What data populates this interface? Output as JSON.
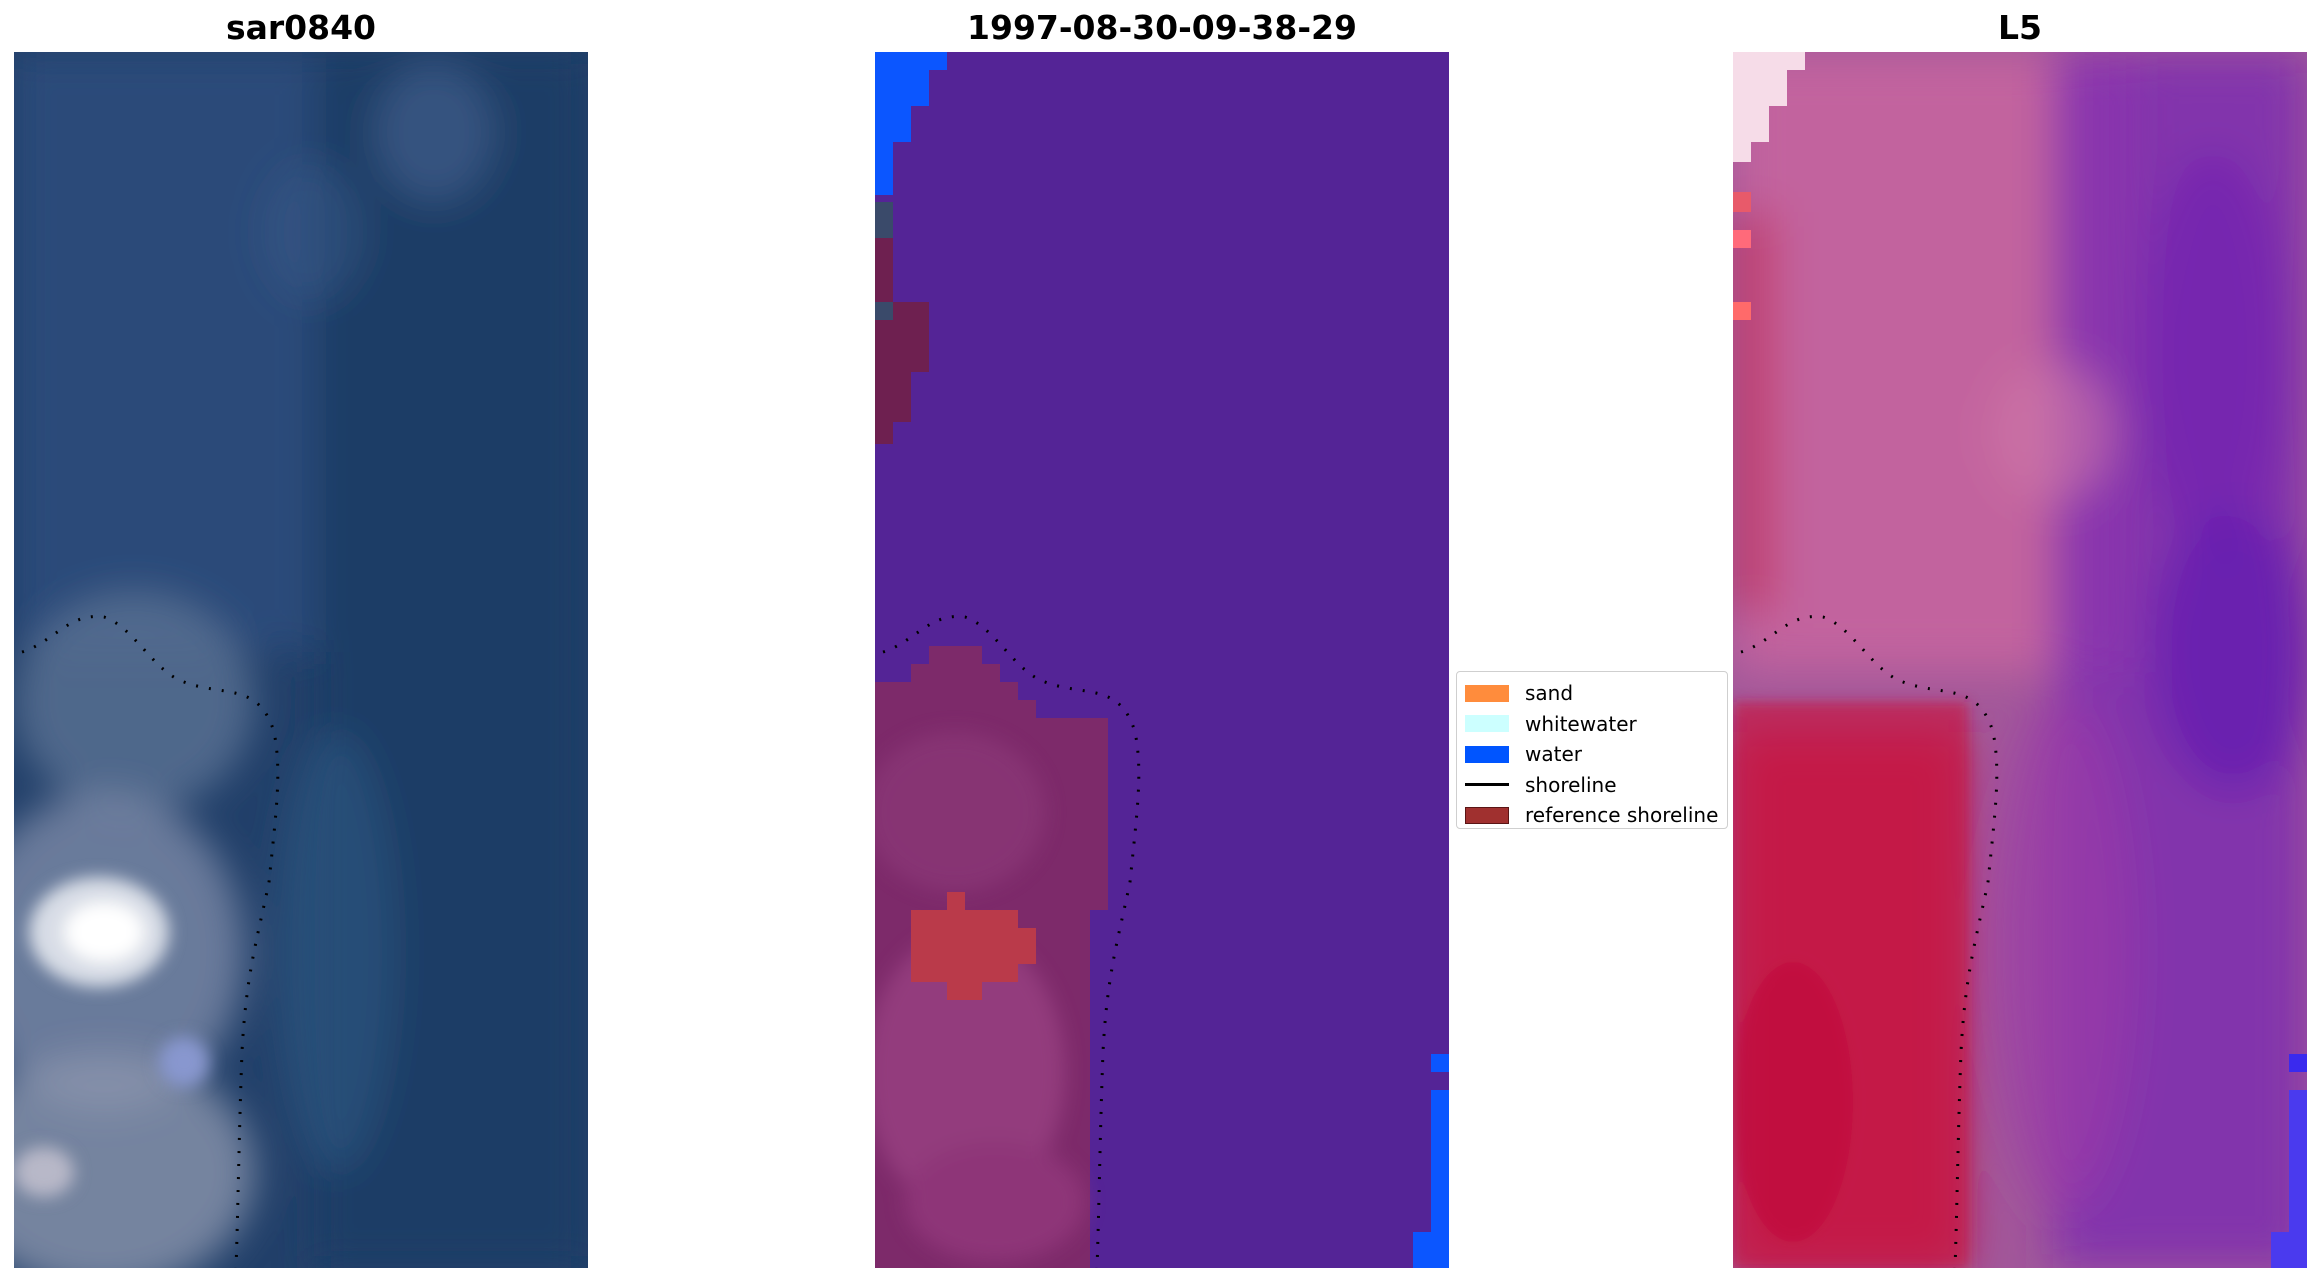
{
  "panels": [
    {
      "title": "sar0840",
      "kind": "rgb-image"
    },
    {
      "title": "1997-08-30-09-38-29",
      "kind": "classified-image"
    },
    {
      "title": "L5",
      "kind": "index-image"
    }
  ],
  "legend": {
    "items": [
      {
        "label": "sand",
        "type": "patch",
        "color": "#ff8c3c"
      },
      {
        "label": "whitewater",
        "type": "patch",
        "color": "#ccffff"
      },
      {
        "label": "water",
        "type": "patch",
        "color": "#0055ff"
      },
      {
        "label": "shoreline",
        "type": "line",
        "color": "#000000"
      },
      {
        "label": "reference shoreline",
        "type": "patch",
        "color": "#a0302f"
      }
    ]
  },
  "colors": {
    "sar_water": "#24406b",
    "class_water_bg": "#542496",
    "class_land": "#7a2a6a",
    "index_mid": "#b85a9c",
    "index_land": "#c41a4a",
    "index_water": "#6a1aa8"
  }
}
